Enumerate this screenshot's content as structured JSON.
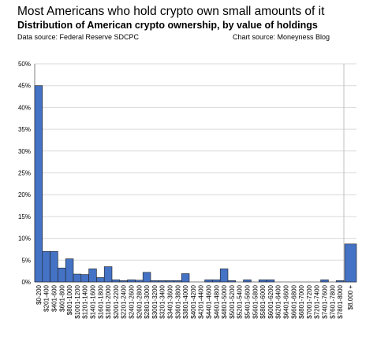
{
  "header": {
    "title": "Most Americans who hold crypto own small amounts of it",
    "subtitle": "Distribution of American crypto ownership, by value of holdings",
    "data_source": "Data source: Federal Reserve SDCPC",
    "chart_source": "Chart source: Moneyness Blog"
  },
  "colors": {
    "bar": "#4472c4",
    "bar_stroke": "#1f1f1f",
    "grid": "#d9d9d9"
  },
  "chart_data": {
    "type": "bar",
    "title": "Distribution of American crypto ownership, by value of holdings",
    "xlabel": "",
    "ylabel": "",
    "ylim": [
      0,
      50
    ],
    "y_ticks": [
      "0%",
      "5%",
      "10%",
      "15%",
      "20%",
      "25%",
      "30%",
      "35%",
      "40%",
      "45%",
      "50%"
    ],
    "grid": true,
    "categories": [
      "$0-200",
      "$201-400",
      "$401-600",
      "$601-800",
      "$801-1000",
      "$1001-1200",
      "$1201-1400",
      "$1401-1600",
      "$1601-1800",
      "$1801-2000",
      "$2001-2200",
      "$2201-2400",
      "$2401-2600",
      "$2601-2800",
      "$2801-3000",
      "$3001-3200",
      "$3201-3400",
      "$3401-3600",
      "$3601-3800",
      "$3801-4000",
      "$4001-4200",
      "$4201-4400",
      "$4401-4600",
      "$4601-4800",
      "$4801-5000",
      "$5001-5200",
      "$5201-5400",
      "$5401-5600",
      "$5601-5800",
      "$5801-6000",
      "$6001-6200",
      "$6201-6400",
      "$6401-6600",
      "$6601-6800",
      "$6801-7000",
      "$7001-7200",
      "$7201-7400",
      "$7401-7600",
      "$7601-7800",
      "$7801-8000"
    ],
    "values": [
      45,
      7,
      7,
      3.2,
      5.3,
      1.8,
      1.7,
      3,
      1,
      3.5,
      0.5,
      0.3,
      0.5,
      0.4,
      2.2,
      0.3,
      0.3,
      0.3,
      0.3,
      1.9,
      0,
      0,
      0.5,
      0.5,
      3,
      0.3,
      0,
      0.5,
      0,
      0.5,
      0.5,
      0,
      0,
      0,
      0,
      0,
      0,
      0.5,
      0,
      0.3
    ],
    "extra_category": "$8,000 +",
    "extra_value": 8.7
  }
}
